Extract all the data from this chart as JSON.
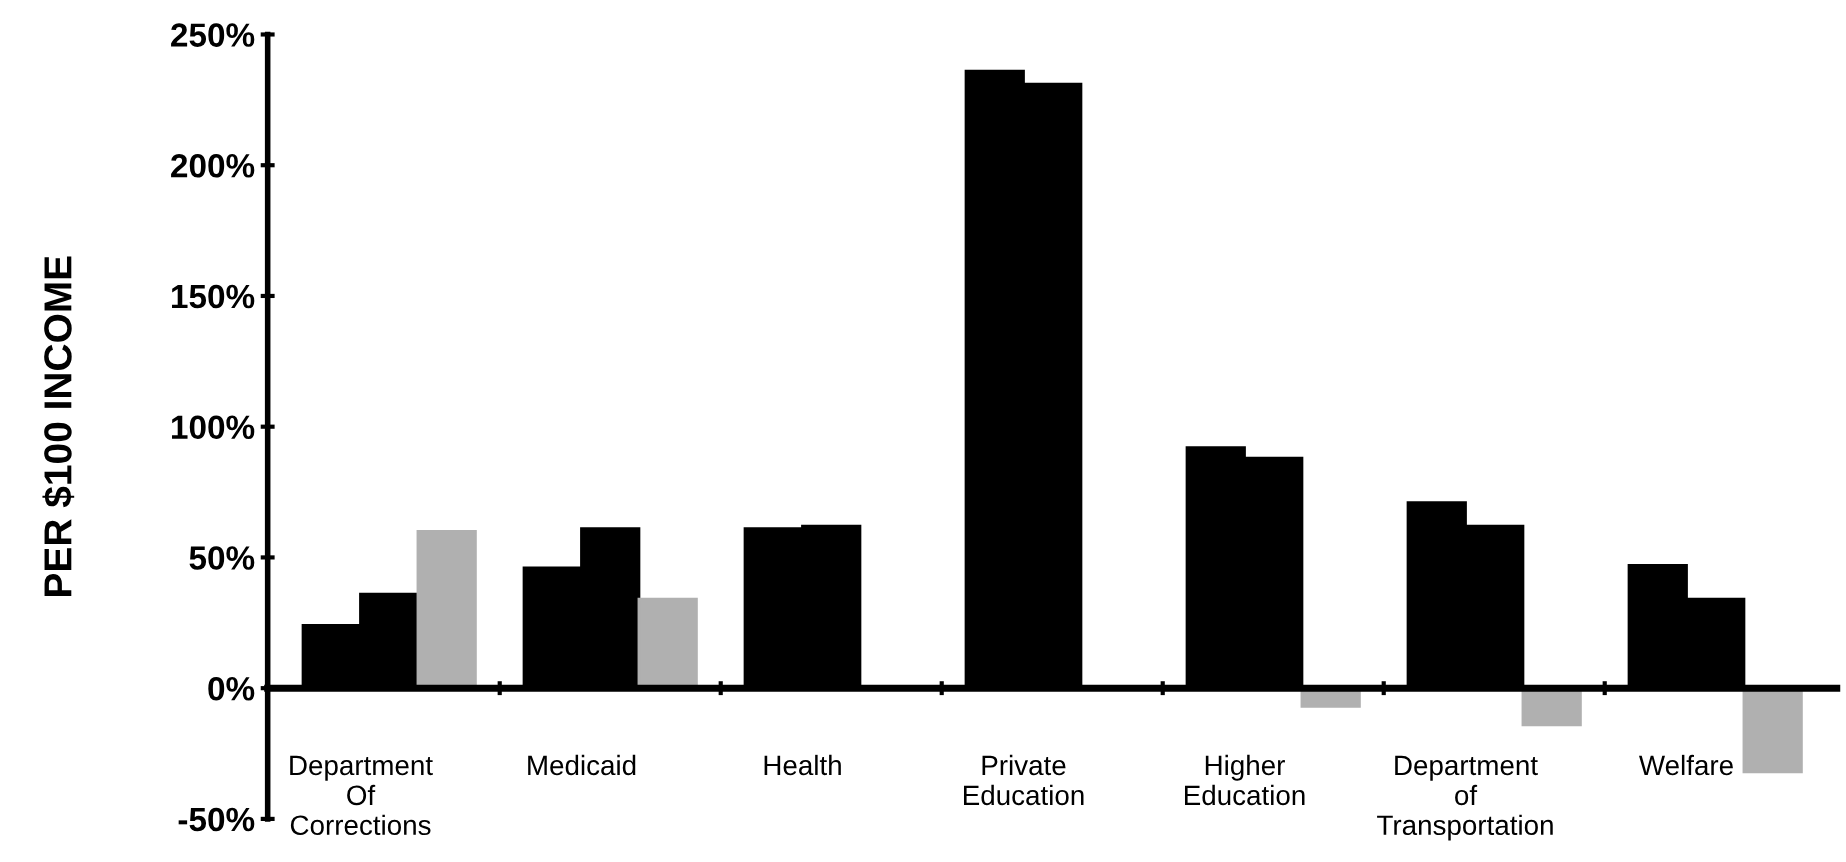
{
  "chart_data": {
    "type": "bar",
    "ylabel": "PER $100 INCOME",
    "categories": [
      "Department\nOf\nCorrections",
      "Medicaid",
      "Health",
      "Private\nEducation",
      "Higher\nEducation",
      "Department\nof\nTransportation",
      "Welfare"
    ],
    "series": [
      {
        "color": "#000000",
        "values": [
          24,
          46,
          61,
          236,
          92,
          71,
          47
        ]
      },
      {
        "color": "#000000",
        "values": [
          36,
          61,
          62,
          231,
          88,
          62,
          34
        ]
      },
      {
        "color": "#b0b0b0",
        "values": [
          60,
          34,
          null,
          0,
          -7,
          -14,
          -32
        ]
      }
    ],
    "ylim": [
      -50,
      250
    ],
    "yticks": [
      {
        "value": -50,
        "label": "-50%"
      },
      {
        "value": 0,
        "label": "0%"
      },
      {
        "value": 50,
        "label": "50%"
      },
      {
        "value": 100,
        "label": "100%"
      },
      {
        "value": 150,
        "label": "150%"
      },
      {
        "value": 200,
        "label": "200%"
      },
      {
        "value": 250,
        "label": "250%"
      }
    ],
    "grid": false,
    "legend": false
  }
}
